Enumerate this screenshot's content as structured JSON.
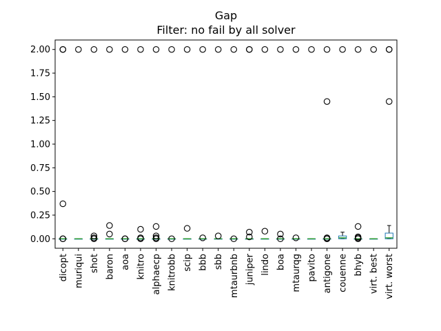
{
  "chart_data": {
    "type": "box",
    "title": "Gap",
    "subtitle": "Filter: no fail by all solver",
    "xlabel": "",
    "ylabel": "",
    "ylim": [
      -0.1,
      2.1
    ],
    "yticks": [
      0.0,
      0.25,
      0.5,
      0.75,
      1.0,
      1.25,
      1.5,
      1.75,
      2.0
    ],
    "ytick_labels": [
      "0.00",
      "0.25",
      "0.50",
      "0.75",
      "1.00",
      "1.25",
      "1.50",
      "1.75",
      "2.00"
    ],
    "grid": false,
    "categories": [
      "dicopt",
      "muriqui",
      "shot",
      "baron",
      "aoa",
      "knitro",
      "alphaecp",
      "knitrobb",
      "scip",
      "bbb",
      "sbb",
      "mtaurbnb",
      "juniper",
      "lindo",
      "boa",
      "mtaurqg",
      "pavito",
      "antigone",
      "couenne",
      "bhyb",
      "virt. best",
      "virt. worst"
    ],
    "boxes": [
      {
        "q1": 0,
        "median": 0,
        "q3": 0,
        "whisker_low": 0,
        "whisker_high": 0,
        "outliers": [
          2.0,
          2.0,
          0.37,
          0.0,
          0.0
        ]
      },
      {
        "q1": 0,
        "median": 0,
        "q3": 0,
        "whisker_low": 0,
        "whisker_high": 0,
        "outliers": [
          2.0
        ]
      },
      {
        "q1": 0,
        "median": 0,
        "q3": 0,
        "whisker_low": 0,
        "whisker_high": 0,
        "outliers": [
          2.0,
          0.03,
          0.01,
          0.0
        ]
      },
      {
        "q1": 0,
        "median": 0,
        "q3": 0,
        "whisker_low": 0,
        "whisker_high": 0,
        "outliers": [
          2.0,
          0.14,
          0.05
        ]
      },
      {
        "q1": 0,
        "median": 0,
        "q3": 0,
        "whisker_low": 0,
        "whisker_high": 0,
        "outliers": [
          2.0,
          0.0,
          0.0
        ]
      },
      {
        "q1": 0,
        "median": 0,
        "q3": 0,
        "whisker_low": 0,
        "whisker_high": 0,
        "outliers": [
          2.0,
          0.1,
          0.01,
          0.0
        ]
      },
      {
        "q1": 0,
        "median": 0,
        "q3": 0,
        "whisker_low": 0,
        "whisker_high": 0,
        "outliers": [
          2.0,
          0.13,
          0.03,
          0.01,
          0.0
        ]
      },
      {
        "q1": 0,
        "median": 0,
        "q3": 0,
        "whisker_low": 0,
        "whisker_high": 0,
        "outliers": [
          2.0,
          0.0
        ]
      },
      {
        "q1": 0,
        "median": 0,
        "q3": 0,
        "whisker_low": 0,
        "whisker_high": 0,
        "outliers": [
          2.0,
          0.11
        ]
      },
      {
        "q1": 0,
        "median": 0,
        "q3": 0,
        "whisker_low": 0,
        "whisker_high": 0,
        "outliers": [
          2.0,
          0.01
        ]
      },
      {
        "q1": 0,
        "median": 0,
        "q3": 0,
        "whisker_low": 0,
        "whisker_high": 0,
        "outliers": [
          2.0,
          0.03
        ]
      },
      {
        "q1": 0,
        "median": 0,
        "q3": 0,
        "whisker_low": 0,
        "whisker_high": 0,
        "outliers": [
          2.0,
          0.0
        ]
      },
      {
        "q1": 0,
        "median": 0,
        "q3": 0,
        "whisker_low": 0,
        "whisker_high": 0,
        "outliers": [
          2.0,
          2.0,
          0.07,
          0.02
        ]
      },
      {
        "q1": 0,
        "median": 0,
        "q3": 0,
        "whisker_low": 0,
        "whisker_high": 0,
        "outliers": [
          2.0,
          0.08
        ]
      },
      {
        "q1": 0,
        "median": 0,
        "q3": 0,
        "whisker_low": 0,
        "whisker_high": 0,
        "outliers": [
          2.0,
          0.05,
          0.0
        ]
      },
      {
        "q1": 0,
        "median": 0,
        "q3": 0,
        "whisker_low": 0,
        "whisker_high": 0,
        "outliers": [
          2.0,
          0.01
        ]
      },
      {
        "q1": 0,
        "median": 0,
        "q3": 0,
        "whisker_low": 0,
        "whisker_high": 0,
        "outliers": [
          2.0
        ]
      },
      {
        "q1": 0,
        "median": 0,
        "q3": 0,
        "whisker_low": 0,
        "whisker_high": 0,
        "outliers": [
          2.0,
          1.45,
          0.01,
          0.0,
          0.0
        ]
      },
      {
        "q1": 0,
        "median": 0.01,
        "q3": 0.03,
        "whisker_low": 0,
        "whisker_high": 0.07,
        "outliers": [
          2.0
        ]
      },
      {
        "q1": 0,
        "median": 0,
        "q3": 0,
        "whisker_low": 0,
        "whisker_high": 0,
        "outliers": [
          2.0,
          0.13,
          0.02,
          0.01,
          0.0
        ]
      },
      {
        "q1": 0,
        "median": 0,
        "q3": 0,
        "whisker_low": 0,
        "whisker_high": 0,
        "outliers": [
          2.0
        ]
      },
      {
        "q1": 0,
        "median": 0.01,
        "q3": 0.06,
        "whisker_low": 0,
        "whisker_high": 0.14,
        "outliers": [
          2.0,
          2.0,
          1.45
        ]
      }
    ],
    "colors": {
      "box": "#1f77b4",
      "median": "#2ca02c",
      "whisker": "#000000",
      "outlier": "#000000"
    }
  }
}
